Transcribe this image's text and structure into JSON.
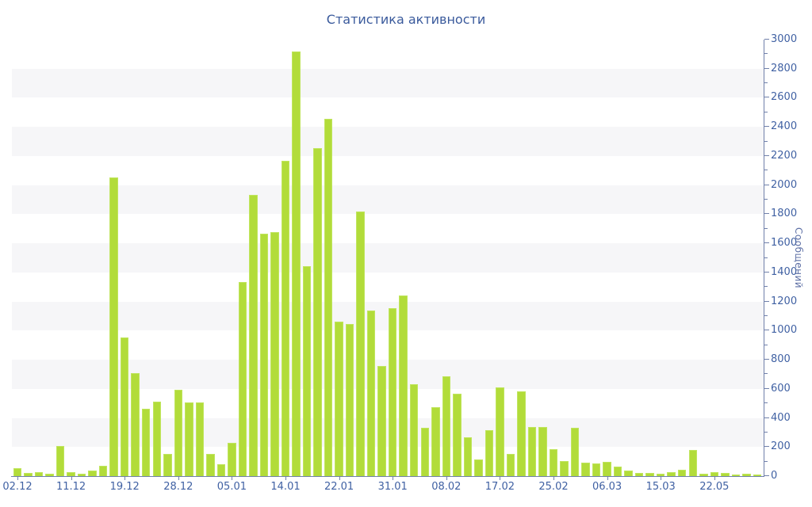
{
  "title": "Статистика активности",
  "chart_data": {
    "type": "bar",
    "title": "Статистика активности",
    "xlabel": "",
    "ylabel": "Сообщений",
    "ylim": [
      0,
      3000
    ],
    "y_tick_step": 200,
    "y_minor_tick_step": 100,
    "y_tick_labels": [
      "0",
      "200",
      "400",
      "600",
      "800",
      "1000",
      "1200",
      "1400",
      "1600",
      "1800",
      "2000",
      "2200",
      "2400",
      "2600",
      "2800",
      "3000"
    ],
    "y_axis_side": "right",
    "legend": "none",
    "grid": "alternating-horizontal-bands",
    "shaded_bands": [
      [
        200,
        400
      ],
      [
        600,
        800
      ],
      [
        1000,
        1200
      ],
      [
        1400,
        1600
      ],
      [
        1800,
        2000
      ],
      [
        2200,
        2400
      ],
      [
        2600,
        2800
      ]
    ],
    "x_tick_labels": [
      "02.12",
      "11.12",
      "19.12",
      "28.12",
      "05.01",
      "14.01",
      "22.01",
      "31.01",
      "08.02",
      "17.02",
      "25.02",
      "06.03",
      "15.03",
      "22.05"
    ],
    "x_tick_every_n_bars": 5,
    "values": [
      55,
      20,
      30,
      15,
      205,
      25,
      18,
      40,
      70,
      2050,
      955,
      710,
      465,
      510,
      155,
      595,
      505,
      505,
      150,
      80,
      230,
      1335,
      1935,
      1665,
      1675,
      2165,
      2920,
      1445,
      2255,
      2455,
      1060,
      1045,
      1820,
      1140,
      755,
      1155,
      1240,
      630,
      330,
      475,
      685,
      565,
      265,
      115,
      315,
      610,
      150,
      580,
      340,
      335,
      185,
      105,
      330,
      95,
      85,
      100,
      65,
      36,
      24,
      20,
      18,
      25,
      45,
      180,
      15,
      25,
      20,
      10,
      15,
      10
    ],
    "colors": {
      "bar_fill": "#b2dc3a",
      "bar_edge": "#c0e55e",
      "band_fill": "#f6f6f8",
      "axis_line": "#7080aa",
      "tick_label": "#4061a3",
      "title_text": "#3a5a9c",
      "y_axis_title_text": "#5d6fa5",
      "background": "#ffffff"
    }
  }
}
